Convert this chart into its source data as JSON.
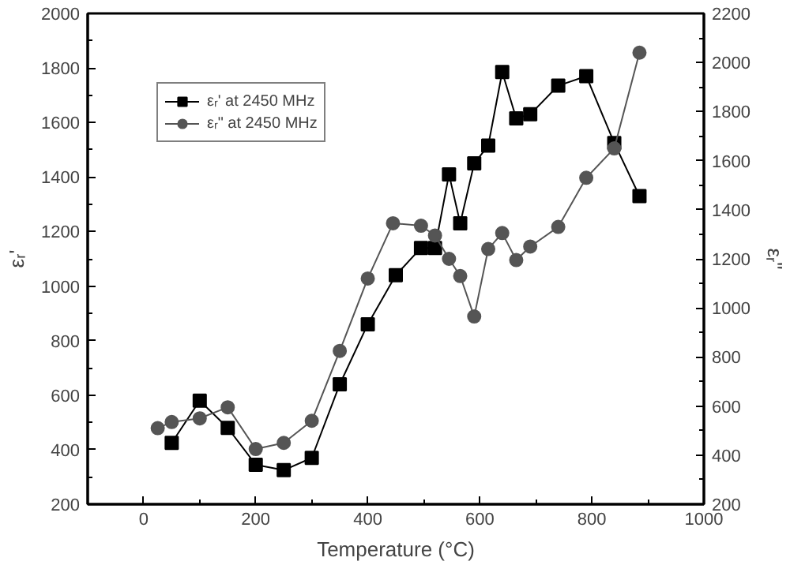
{
  "chart_data": {
    "type": "line",
    "xlabel": "Temperature (°C)",
    "ylabel": "εᵣ'",
    "y2label": "εᵣ\"",
    "xlim": [
      -100,
      1000
    ],
    "xticks": [
      0,
      200,
      400,
      600,
      800,
      1000
    ],
    "ylim": [
      200,
      2000
    ],
    "yticks": [
      200,
      400,
      600,
      800,
      1000,
      1200,
      1400,
      1600,
      1800,
      2000
    ],
    "y2lim": [
      200,
      2200
    ],
    "y2ticks": [
      200,
      400,
      600,
      800,
      1000,
      1200,
      1400,
      1600,
      1800,
      2000,
      2200
    ],
    "grid": false,
    "legend": "top left",
    "line_style": "solid",
    "series": [
      {
        "name": "εᵣ' at 2450 MHz",
        "color": "#000000",
        "marker": "square",
        "x": [
          50,
          100,
          150,
          200,
          250,
          300,
          350,
          400,
          450,
          495,
          520,
          545,
          565,
          590,
          615,
          640,
          665,
          690,
          740,
          790,
          840,
          885
        ],
        "values": [
          425,
          580,
          480,
          345,
          325,
          370,
          640,
          860,
          1040,
          1140,
          1140,
          1410,
          1230,
          1450,
          1515,
          1785,
          1615,
          1630,
          1735,
          1770,
          1525,
          1330
        ]
      },
      {
        "name": "εᵣ\" at 2450 MHz",
        "color": "#555555",
        "marker": "circle",
        "axis": "y2",
        "x": [
          25,
          50,
          100,
          150,
          200,
          250,
          300,
          350,
          400,
          445,
          495,
          520,
          545,
          565,
          590,
          615,
          640,
          665,
          690,
          740,
          790,
          840,
          885
        ],
        "values": [
          510,
          535,
          550,
          595,
          425,
          450,
          540,
          825,
          1120,
          1345,
          1335,
          1295,
          1200,
          1130,
          965,
          1240,
          1305,
          1195,
          1250,
          1330,
          1530,
          1650,
          2040
        ]
      }
    ]
  }
}
